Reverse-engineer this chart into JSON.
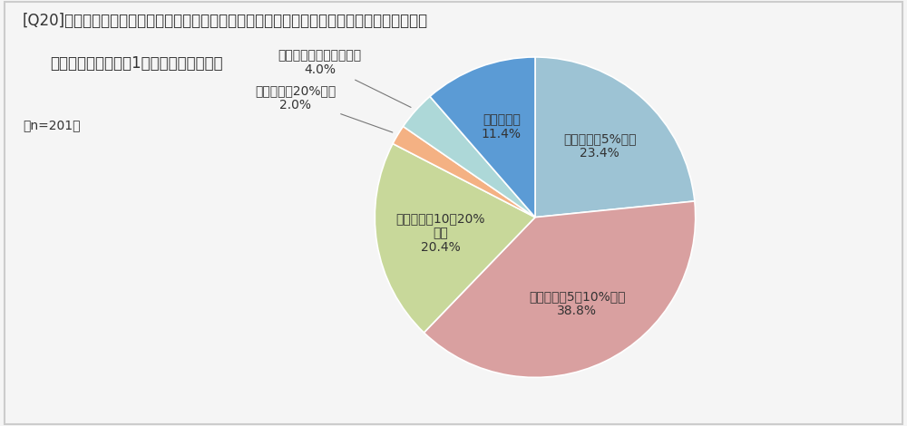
{
  "title_line1": "[Q20]サブリース以外の賃貸住宅の管理のための費用は、家賃収入のどの程度に相当しますか。",
  "title_line2": "　最も多いケースを1つお選びください。",
  "n_label": "（n=201）",
  "slices": [
    {
      "label_inside": "家賃収入の5%未満\n23.4%",
      "value": 23.4,
      "color": "#9dc3d4"
    },
    {
      "label_inside": "家賃収入の5～10%未満\n38.8%",
      "value": 38.8,
      "color": "#d9a0a0"
    },
    {
      "label_inside": "家賃収入の10～20%\n未満\n20.4%",
      "value": 20.4,
      "color": "#c8d89a"
    },
    {
      "label_outside": "家賃収入の20%以上\n2.0%",
      "value": 2.0,
      "color": "#f4b183"
    },
    {
      "label_outside": "管理費用は払っていない\n4.0%",
      "value": 4.0,
      "color": "#add8d8"
    },
    {
      "label_inside": "わからない\n11.4%",
      "value": 11.4,
      "color": "#5b9bd5"
    }
  ],
  "startangle": 90,
  "background_color": "#f5f5f5",
  "text_color": "#333333",
  "title_fontsize": 12,
  "label_fontsize": 10,
  "n_fontsize": 10
}
